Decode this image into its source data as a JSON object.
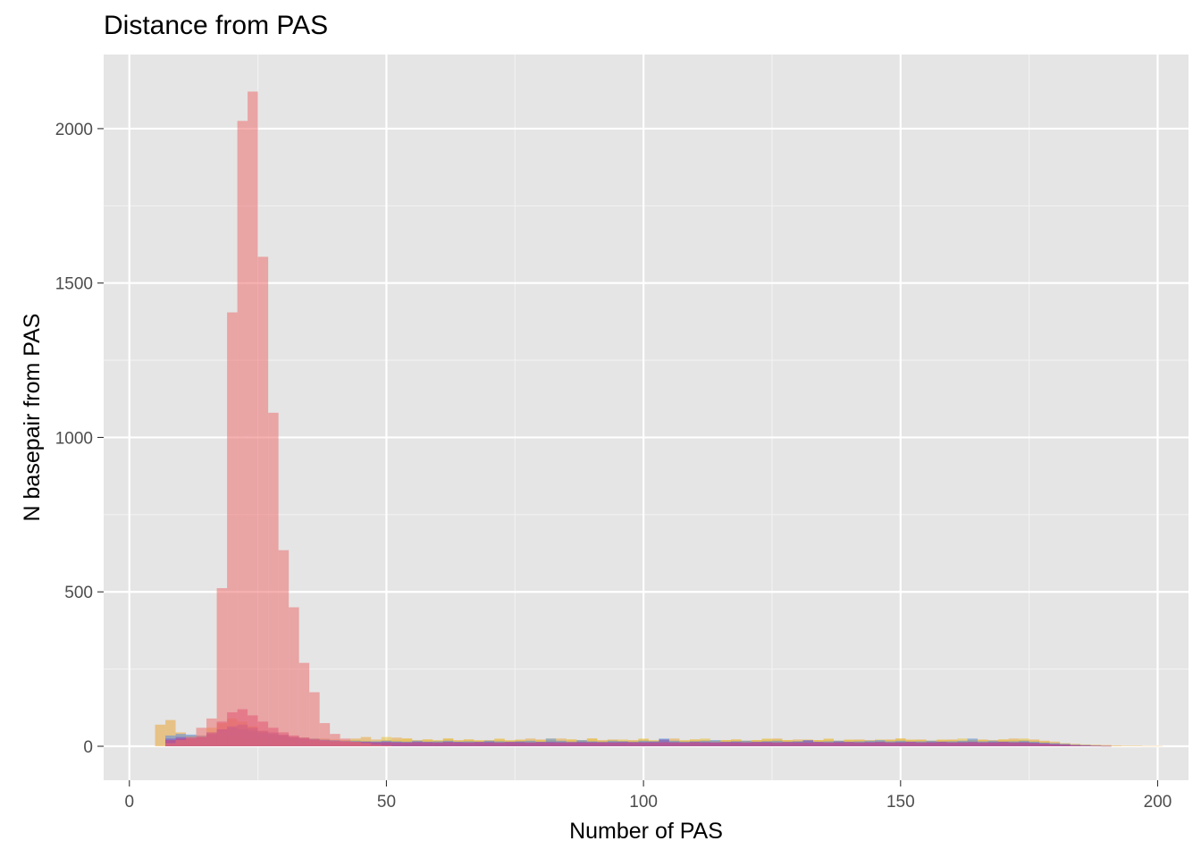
{
  "chart_data": {
    "type": "histogram",
    "title": "Distance from PAS",
    "xlabel": "Number of PAS",
    "ylabel": "N basepair from PAS",
    "xlim": [
      -5,
      206
    ],
    "ylim": [
      -110,
      2240
    ],
    "x_ticks": [
      0,
      50,
      100,
      150,
      200
    ],
    "y_ticks": [
      0,
      500,
      1000,
      1500,
      2000
    ],
    "x_tick_labels": [
      "0",
      "50",
      "100",
      "150",
      "200"
    ],
    "y_tick_labels": [
      "0",
      "500",
      "1000",
      "1500",
      "2000"
    ],
    "grid": true,
    "legend": "none",
    "bin_width": 2,
    "opacity": 0.55,
    "series": [
      {
        "color": "#e9a63a",
        "x": [
          6,
          8,
          10,
          12,
          14,
          16,
          18,
          20,
          22,
          24,
          26,
          28,
          30,
          32,
          34,
          36,
          38,
          40,
          42,
          44,
          46,
          48,
          50,
          52,
          54,
          56,
          58,
          60,
          62,
          64,
          66,
          68,
          70,
          72,
          74,
          76,
          78,
          80,
          82,
          84,
          86,
          88,
          90,
          92,
          94,
          96,
          98,
          100,
          102,
          104,
          106,
          108,
          110,
          112,
          114,
          116,
          118,
          120,
          122,
          124,
          126,
          128,
          130,
          132,
          134,
          136,
          138,
          140,
          142,
          144,
          146,
          148,
          150,
          152,
          154,
          156,
          158,
          160,
          162,
          164,
          166,
          168,
          170,
          172,
          174,
          176,
          178,
          180,
          182,
          184,
          186,
          188,
          190,
          192,
          194,
          196,
          198,
          200
        ],
        "values": [
          70,
          85,
          45,
          35,
          30,
          60,
          75,
          90,
          80,
          65,
          50,
          40,
          35,
          30,
          28,
          25,
          25,
          22,
          20,
          25,
          30,
          22,
          20,
          28,
          25,
          20,
          22,
          18,
          25,
          20,
          22,
          18,
          20,
          22,
          18,
          20,
          25,
          22,
          20,
          25,
          22,
          18,
          25,
          20,
          22,
          18,
          20,
          22,
          18,
          20,
          25,
          18,
          22,
          20,
          18,
          20,
          22,
          18,
          20,
          22,
          25,
          20,
          22,
          18,
          20,
          22,
          18,
          20,
          22,
          20,
          18,
          22,
          25,
          20,
          22,
          18,
          20,
          22,
          18,
          20,
          22,
          20,
          22,
          25,
          20,
          22,
          18,
          15,
          10,
          8,
          6,
          5,
          4,
          3,
          2,
          2,
          1,
          1
        ]
      },
      {
        "color": "#e8c13c",
        "x": [
          8,
          10,
          12,
          14,
          16,
          18,
          20,
          22,
          24,
          26,
          28,
          30,
          32,
          34,
          36,
          38,
          40,
          42,
          44,
          46,
          48,
          50,
          52,
          54,
          56,
          58,
          60,
          62,
          64,
          66,
          68,
          70,
          72,
          74,
          76,
          78,
          80,
          82,
          84,
          86,
          88,
          90,
          92,
          94,
          96,
          98,
          100,
          102,
          104,
          106,
          108,
          110,
          112,
          114,
          116,
          118,
          120,
          122,
          124,
          126,
          128,
          130,
          132,
          134,
          136,
          138,
          140,
          142,
          144,
          146,
          148,
          150,
          152,
          154,
          156,
          158,
          160,
          162,
          164,
          166,
          168,
          170,
          172,
          174,
          176,
          178,
          180,
          182,
          184,
          186,
          188,
          190
        ],
        "values": [
          20,
          25,
          30,
          35,
          40,
          40,
          35,
          30,
          28,
          25,
          22,
          20,
          20,
          18,
          18,
          16,
          16,
          18,
          20,
          18,
          16,
          30,
          20,
          25,
          18,
          22,
          20,
          25,
          18,
          22,
          20,
          18,
          25,
          20,
          22,
          18,
          20,
          25,
          18,
          22,
          20,
          25,
          18,
          20,
          22,
          18,
          25,
          20,
          22,
          18,
          20,
          22,
          25,
          18,
          20,
          22,
          18,
          20,
          25,
          22,
          20,
          18,
          22,
          20,
          25,
          18,
          22,
          20,
          18,
          22,
          20,
          25,
          22,
          20,
          18,
          22,
          20,
          25,
          22,
          20,
          18,
          22,
          20,
          25,
          18,
          15,
          10,
          8,
          5,
          4,
          2,
          1
        ]
      },
      {
        "color": "#5a8ee0",
        "x": [
          8,
          10,
          12,
          14,
          16,
          18,
          20,
          22,
          24,
          26,
          28,
          30,
          32,
          34,
          36,
          38,
          40,
          42,
          44,
          46,
          48,
          50,
          52,
          54,
          56,
          58,
          60,
          62,
          64,
          66,
          68,
          70,
          72,
          74,
          76,
          78,
          80,
          82,
          84,
          86,
          88,
          90,
          92,
          94,
          96,
          98,
          100,
          102,
          104,
          106,
          108,
          110,
          112,
          114,
          116,
          118,
          120,
          122,
          124,
          126,
          128,
          130,
          132,
          134,
          136,
          138,
          140,
          142,
          144,
          146,
          148,
          150,
          152,
          154,
          156,
          158,
          160,
          162,
          164,
          166,
          168,
          170,
          172,
          174,
          176,
          178,
          180,
          182,
          184,
          186,
          188,
          190
        ],
        "values": [
          35,
          40,
          38,
          35,
          45,
          55,
          60,
          55,
          50,
          45,
          40,
          35,
          30,
          28,
          25,
          22,
          20,
          18,
          18,
          16,
          16,
          18,
          16,
          15,
          18,
          15,
          16,
          18,
          15,
          16,
          15,
          18,
          16,
          15,
          16,
          18,
          15,
          25,
          18,
          15,
          20,
          16,
          15,
          18,
          16,
          15,
          18,
          16,
          25,
          18,
          15,
          16,
          18,
          20,
          15,
          16,
          18,
          15,
          16,
          18,
          15,
          16,
          18,
          15,
          16,
          18,
          15,
          16,
          18,
          20,
          16,
          18,
          15,
          16,
          18,
          15,
          16,
          18,
          25,
          16,
          18,
          15,
          16,
          18,
          15,
          12,
          10,
          8,
          5,
          4,
          2,
          1
        ]
      },
      {
        "color": "#7a50c8",
        "x": [
          8,
          10,
          12,
          14,
          16,
          18,
          20,
          22,
          24,
          26,
          28,
          30,
          32,
          34,
          36,
          38,
          40,
          42,
          44,
          46,
          48,
          50,
          52,
          54,
          56,
          58,
          60,
          62,
          64,
          66,
          68,
          70,
          72,
          74,
          76,
          78,
          80,
          82,
          84,
          86,
          88,
          90,
          92,
          94,
          96,
          98,
          100,
          102,
          104,
          106,
          108,
          110,
          112,
          114,
          116,
          118,
          120,
          122,
          124,
          126,
          128,
          130,
          132,
          134,
          136,
          138,
          140,
          142,
          144,
          146,
          148,
          150,
          152,
          154,
          156,
          158,
          160,
          162,
          164,
          166,
          168,
          170,
          172,
          174,
          176,
          178,
          180,
          182,
          184,
          186,
          188,
          190
        ],
        "values": [
          25,
          30,
          28,
          30,
          40,
          55,
          65,
          70,
          60,
          50,
          45,
          38,
          30,
          25,
          22,
          20,
          18,
          16,
          15,
          15,
          14,
          15,
          14,
          13,
          15,
          14,
          13,
          15,
          14,
          13,
          14,
          15,
          13,
          14,
          15,
          13,
          14,
          15,
          14,
          13,
          15,
          14,
          13,
          14,
          15,
          13,
          14,
          15,
          22,
          14,
          13,
          15,
          14,
          13,
          14,
          15,
          13,
          14,
          15,
          13,
          14,
          15,
          20,
          14,
          13,
          15,
          14,
          13,
          14,
          15,
          13,
          14,
          15,
          13,
          14,
          15,
          13,
          14,
          15,
          13,
          14,
          15,
          13,
          14,
          12,
          10,
          8,
          6,
          4,
          3,
          2,
          1
        ]
      },
      {
        "color": "#d6407a",
        "x": [
          8,
          10,
          12,
          14,
          16,
          18,
          20,
          22,
          24,
          26,
          28,
          30,
          32,
          34,
          36,
          38,
          40,
          42,
          44,
          46,
          48,
          50,
          52,
          54,
          56,
          58,
          60,
          62,
          64,
          66,
          68,
          70,
          72,
          74,
          76,
          78,
          80,
          82,
          84,
          86,
          88,
          90,
          92,
          94,
          96,
          98,
          100,
          102,
          104,
          106,
          108,
          110,
          112,
          114,
          116,
          118,
          120,
          122,
          124,
          126,
          128,
          130,
          132,
          134,
          136,
          138,
          140,
          142,
          144,
          146,
          148,
          150,
          152,
          154,
          156,
          158,
          160,
          162,
          164,
          166,
          168,
          170,
          172,
          174,
          176,
          178,
          180,
          182,
          184,
          186,
          188,
          190
        ],
        "values": [
          20,
          25,
          25,
          30,
          45,
          80,
          110,
          120,
          100,
          80,
          60,
          45,
          35,
          28,
          22,
          18,
          16,
          15,
          14,
          13,
          12,
          13,
          12,
          12,
          13,
          12,
          12,
          13,
          12,
          12,
          13,
          12,
          12,
          13,
          12,
          12,
          13,
          12,
          12,
          13,
          12,
          12,
          13,
          12,
          12,
          13,
          12,
          12,
          13,
          12,
          12,
          13,
          12,
          12,
          13,
          12,
          12,
          13,
          12,
          12,
          13,
          12,
          12,
          13,
          12,
          12,
          13,
          12,
          12,
          13,
          12,
          12,
          13,
          12,
          12,
          13,
          12,
          12,
          13,
          12,
          12,
          13,
          12,
          12,
          10,
          8,
          6,
          5,
          3,
          2,
          1,
          1
        ]
      },
      {
        "color": "#ec6f6f",
        "x": [
          8,
          10,
          12,
          14,
          16,
          18,
          20,
          22,
          24,
          26,
          28,
          30,
          32,
          34,
          36,
          38,
          40,
          42,
          44,
          46,
          48,
          50
        ],
        "values": [
          10,
          20,
          30,
          60,
          90,
          512,
          1405,
          2025,
          2120,
          1585,
          1080,
          635,
          450,
          270,
          175,
          75,
          40,
          25,
          15,
          10,
          5,
          3
        ]
      }
    ]
  }
}
